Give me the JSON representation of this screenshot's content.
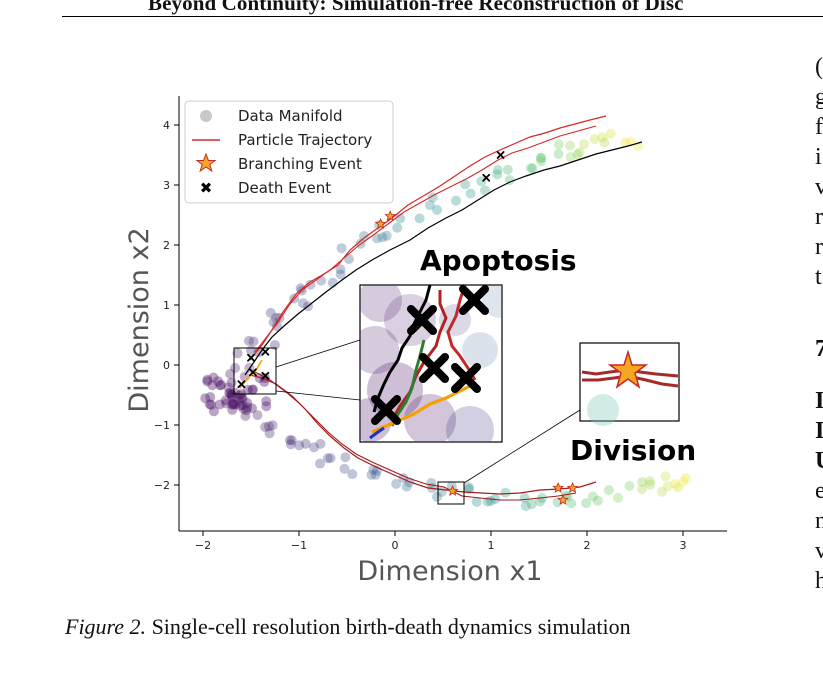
{
  "header": {
    "title": "Beyond Continuity: Simulation-free Reconstruction of Disc"
  },
  "figure": {
    "caption_label": "Figure 2.",
    "caption_text": "Single-cell resolution birth-death dynamics simulation",
    "annotations": {
      "apoptosis": "Apoptosis",
      "division": "Division"
    },
    "colors": {
      "trajectory": "#d62728",
      "branch_star": "#f5a623",
      "death_mark": "#000000",
      "manifold_start": "#440154",
      "manifold_mid": "#21918c",
      "manifold_end": "#fde725"
    }
  },
  "chart_data": {
    "type": "scatter",
    "xlabel": "Dimension x1",
    "ylabel": "Dimension x2",
    "xlim": [
      -2.3,
      3.5
    ],
    "ylim": [
      -2.75,
      4.5
    ],
    "xticks": [
      "−2",
      "−1",
      "0",
      "1",
      "2",
      "3"
    ],
    "yticks": [
      "4",
      "3",
      "2",
      "1",
      "0",
      "−1",
      "−2"
    ],
    "legend": {
      "placement": "top-left",
      "entries": [
        "Data Manifold",
        "Particle Trajectory",
        "Branching Event",
        "Death Event"
      ]
    },
    "branching_events": [
      [
        -0.15,
        2.35
      ],
      [
        -0.05,
        2.48
      ],
      [
        0.6,
        -2.1
      ],
      [
        1.7,
        -2.05
      ],
      [
        1.85,
        -2.05
      ],
      [
        1.75,
        -2.25
      ]
    ],
    "death_events": [
      [
        1.1,
        3.5
      ],
      [
        0.95,
        3.12
      ],
      [
        -1.5,
        0.12
      ],
      [
        -1.35,
        0.22
      ],
      [
        -1.6,
        -0.32
      ],
      [
        -1.48,
        -0.12
      ],
      [
        -1.35,
        -0.18
      ]
    ]
  },
  "right_column": {
    "lines": [
      "(",
      "g",
      "f",
      "i",
      "v",
      "r",
      "r",
      "t"
    ],
    "section_number": "7",
    "lines2": [
      "I",
      "I",
      "U",
      "e",
      "n",
      "v",
      "h"
    ]
  }
}
